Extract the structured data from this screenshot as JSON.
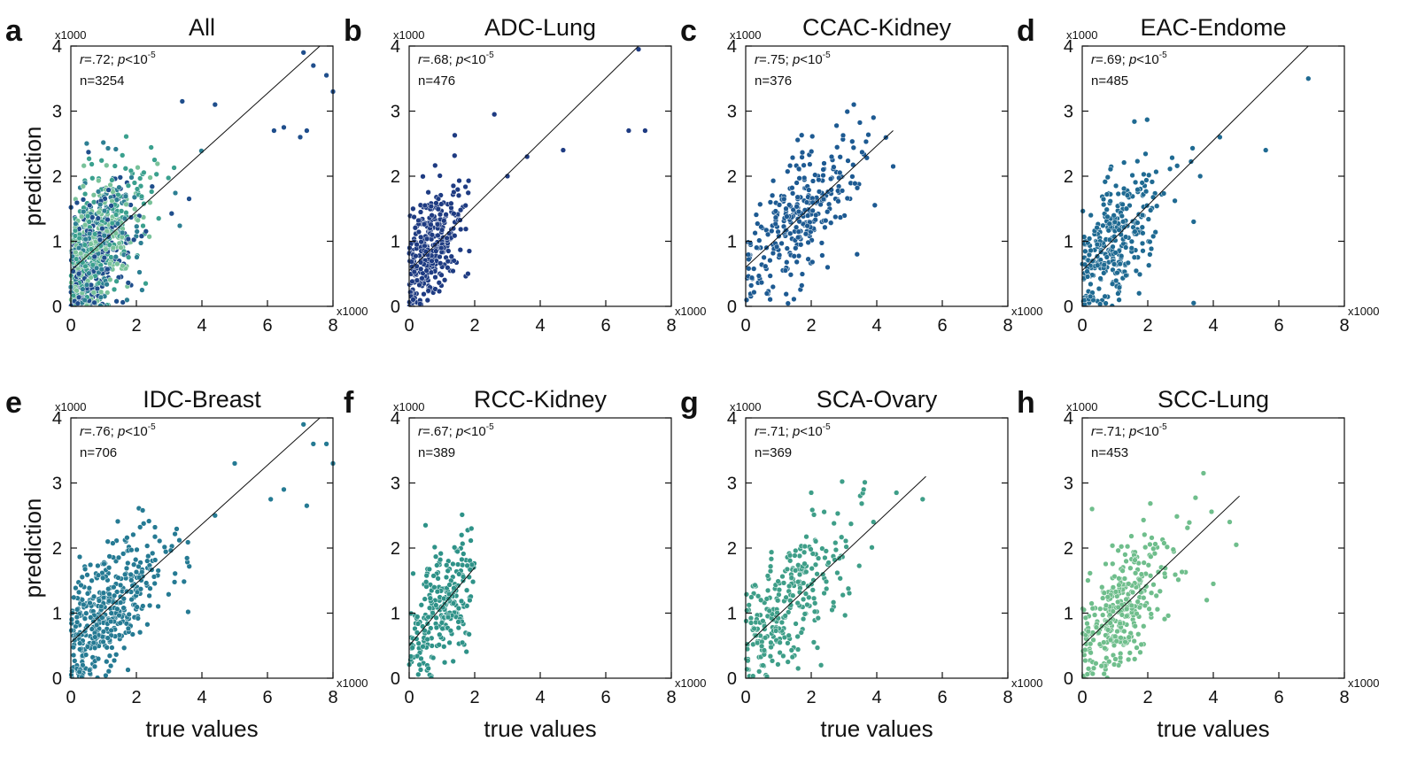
{
  "figure": {
    "x_axis_label": "true values",
    "y_axis_label": "prediction",
    "multiplier_label": "x1000"
  },
  "chart_data": [
    {
      "type": "scatter",
      "letter": "a",
      "title": "All",
      "r": ".72",
      "p": "10",
      "p_exp": "-5",
      "n": "n=3254",
      "xlim": [
        0,
        8
      ],
      "ylim": [
        0,
        4
      ],
      "xticks": [
        0,
        2,
        4,
        6,
        8
      ],
      "yticks": [
        0,
        1,
        2,
        3,
        4
      ],
      "fit": {
        "x": [
          0,
          7.6
        ],
        "y": [
          0.55,
          4.0
        ]
      },
      "colors": [
        "#1f4e8c",
        "#2d7f93",
        "#3aa08e",
        "#78c29a"
      ],
      "highlight_points": [
        [
          7.1,
          3.9
        ],
        [
          7.4,
          3.7
        ],
        [
          7.8,
          3.55
        ],
        [
          8.0,
          3.3
        ],
        [
          6.2,
          2.7
        ],
        [
          6.5,
          2.75
        ],
        [
          7.2,
          2.7
        ],
        [
          7.0,
          2.6
        ],
        [
          4.4,
          3.1
        ],
        [
          3.4,
          3.15
        ]
      ],
      "cluster": {
        "count": 850,
        "cx": 0.7,
        "cy": 0.9,
        "sx": 0.7,
        "sy": 0.65,
        "xmax": 5.0
      }
    },
    {
      "type": "scatter",
      "letter": "b",
      "title": "ADC-Lung",
      "r": ".68",
      "p": "10",
      "p_exp": "-5",
      "n": "n=476",
      "xlim": [
        0,
        8
      ],
      "ylim": [
        0,
        4
      ],
      "xticks": [
        0,
        2,
        4,
        6,
        8
      ],
      "yticks": [
        0,
        1,
        2,
        3,
        4
      ],
      "fit": {
        "x": [
          0,
          7.0
        ],
        "y": [
          0.55,
          4.0
        ]
      },
      "colors": [
        "#1e3b82"
      ],
      "highlight_points": [
        [
          7.0,
          3.95
        ],
        [
          6.7,
          2.7
        ],
        [
          7.2,
          2.7
        ],
        [
          4.7,
          2.4
        ],
        [
          2.6,
          2.95
        ],
        [
          3.0,
          2.0
        ],
        [
          3.6,
          2.3
        ]
      ],
      "cluster": {
        "count": 320,
        "cx": 0.6,
        "cy": 0.8,
        "sx": 0.55,
        "sy": 0.55,
        "xmax": 2.2
      }
    },
    {
      "type": "scatter",
      "letter": "c",
      "title": "CCAC-Kidney",
      "r": ".75",
      "p": "10",
      "p_exp": "-5",
      "n": "n=376",
      "xlim": [
        0,
        8
      ],
      "ylim": [
        0,
        4
      ],
      "xticks": [
        0,
        2,
        4,
        6,
        8
      ],
      "yticks": [
        0,
        1,
        2,
        3,
        4
      ],
      "fit": {
        "x": [
          0,
          4.5
        ],
        "y": [
          0.6,
          2.7
        ]
      },
      "colors": [
        "#1d5a92"
      ],
      "highlight_points": [
        [
          3.3,
          3.1
        ],
        [
          3.9,
          2.9
        ],
        [
          4.5,
          2.15
        ],
        [
          3.4,
          0.8
        ],
        [
          2.5,
          0.6
        ]
      ],
      "cluster": {
        "count": 300,
        "cx": 1.7,
        "cy": 1.4,
        "sx": 1.0,
        "sy": 0.6,
        "xmax": 4.3
      }
    },
    {
      "type": "scatter",
      "letter": "d",
      "title": "EAC-Endome",
      "r": ".69",
      "p": "10",
      "p_exp": "-5",
      "n": "n=485",
      "xlim": [
        0,
        8
      ],
      "ylim": [
        0,
        4
      ],
      "xticks": [
        0,
        2,
        4,
        6,
        8
      ],
      "yticks": [
        0,
        1,
        2,
        3,
        4
      ],
      "fit": {
        "x": [
          0,
          6.9
        ],
        "y": [
          0.55,
          4.0
        ]
      },
      "colors": [
        "#1f6a92"
      ],
      "highlight_points": [
        [
          6.9,
          3.5
        ],
        [
          5.6,
          2.4
        ],
        [
          4.2,
          2.6
        ],
        [
          3.6,
          2.0
        ],
        [
          3.4,
          0.05
        ],
        [
          3.4,
          1.3
        ]
      ],
      "cluster": {
        "count": 330,
        "cx": 0.9,
        "cy": 1.1,
        "sx": 0.75,
        "sy": 0.6,
        "xmax": 3.5
      }
    },
    {
      "type": "scatter",
      "letter": "e",
      "title": "IDC-Breast",
      "r": ".76",
      "p": "10",
      "p_exp": "-5",
      "n": "n=706",
      "xlim": [
        0,
        8
      ],
      "ylim": [
        0,
        4
      ],
      "xticks": [
        0,
        2,
        4,
        6,
        8
      ],
      "yticks": [
        0,
        1,
        2,
        3,
        4
      ],
      "fit": {
        "x": [
          0,
          7.6
        ],
        "y": [
          0.55,
          4.0
        ]
      },
      "colors": [
        "#257a93"
      ],
      "highlight_points": [
        [
          7.1,
          3.9
        ],
        [
          7.4,
          3.6
        ],
        [
          7.8,
          3.6
        ],
        [
          8.0,
          3.3
        ],
        [
          6.1,
          2.75
        ],
        [
          6.5,
          2.9
        ],
        [
          7.2,
          2.65
        ],
        [
          5.0,
          3.3
        ],
        [
          4.4,
          2.5
        ]
      ],
      "cluster": {
        "count": 420,
        "cx": 1.0,
        "cy": 1.1,
        "sx": 0.85,
        "sy": 0.65,
        "xmax": 4.0
      }
    },
    {
      "type": "scatter",
      "letter": "f",
      "title": "RCC-Kidney",
      "r": ".67",
      "p": "10",
      "p_exp": "-5",
      "n": "n=389",
      "xlim": [
        0,
        8
      ],
      "ylim": [
        0,
        4
      ],
      "xticks": [
        0,
        2,
        4,
        6,
        8
      ],
      "yticks": [
        0,
        1,
        2,
        3,
        4
      ],
      "fit": {
        "x": [
          0,
          2.0
        ],
        "y": [
          0.5,
          1.7
        ]
      },
      "colors": [
        "#2e9288"
      ],
      "highlight_points": [
        [
          0.5,
          2.35
        ],
        [
          1.6,
          2.2
        ],
        [
          1.9,
          2.3
        ]
      ],
      "cluster": {
        "count": 250,
        "cx": 1.1,
        "cy": 1.0,
        "sx": 0.6,
        "sy": 0.55,
        "xmax": 2.0
      }
    },
    {
      "type": "scatter",
      "letter": "g",
      "title": "SCA-Ovary",
      "r": ".71",
      "p": "10",
      "p_exp": "-5",
      "n": "n=369",
      "xlim": [
        0,
        8
      ],
      "ylim": [
        0,
        4
      ],
      "xticks": [
        0,
        2,
        4,
        6,
        8
      ],
      "yticks": [
        0,
        1,
        2,
        3,
        4
      ],
      "fit": {
        "x": [
          0,
          5.5
        ],
        "y": [
          0.5,
          3.1
        ]
      },
      "colors": [
        "#3e9e88"
      ],
      "highlight_points": [
        [
          5.4,
          2.75
        ],
        [
          4.6,
          2.85
        ],
        [
          3.6,
          2.9
        ],
        [
          3.9,
          2.4
        ],
        [
          2.0,
          2.85
        ],
        [
          2.3,
          0.2
        ],
        [
          1.6,
          0.15
        ]
      ],
      "cluster": {
        "count": 280,
        "cx": 1.3,
        "cy": 1.1,
        "sx": 0.9,
        "sy": 0.6,
        "xmax": 4.8
      }
    },
    {
      "type": "scatter",
      "letter": "h",
      "title": "SCC-Lung",
      "r": ".71",
      "p": "10",
      "p_exp": "-5",
      "n": "n=453",
      "xlim": [
        0,
        8
      ],
      "ylim": [
        0,
        4
      ],
      "xticks": [
        0,
        2,
        4,
        6,
        8
      ],
      "yticks": [
        0,
        1,
        2,
        3,
        4
      ],
      "fit": {
        "x": [
          0,
          4.8
        ],
        "y": [
          0.5,
          2.8
        ]
      },
      "colors": [
        "#6fbe8c"
      ],
      "highlight_points": [
        [
          3.7,
          3.15
        ],
        [
          0.3,
          2.6
        ],
        [
          4.7,
          2.05
        ],
        [
          4.5,
          2.4
        ],
        [
          3.8,
          1.2
        ],
        [
          4.0,
          1.45
        ]
      ],
      "cluster": {
        "count": 320,
        "cx": 1.1,
        "cy": 1.1,
        "sx": 0.75,
        "sy": 0.55,
        "xmax": 4.0
      }
    }
  ]
}
